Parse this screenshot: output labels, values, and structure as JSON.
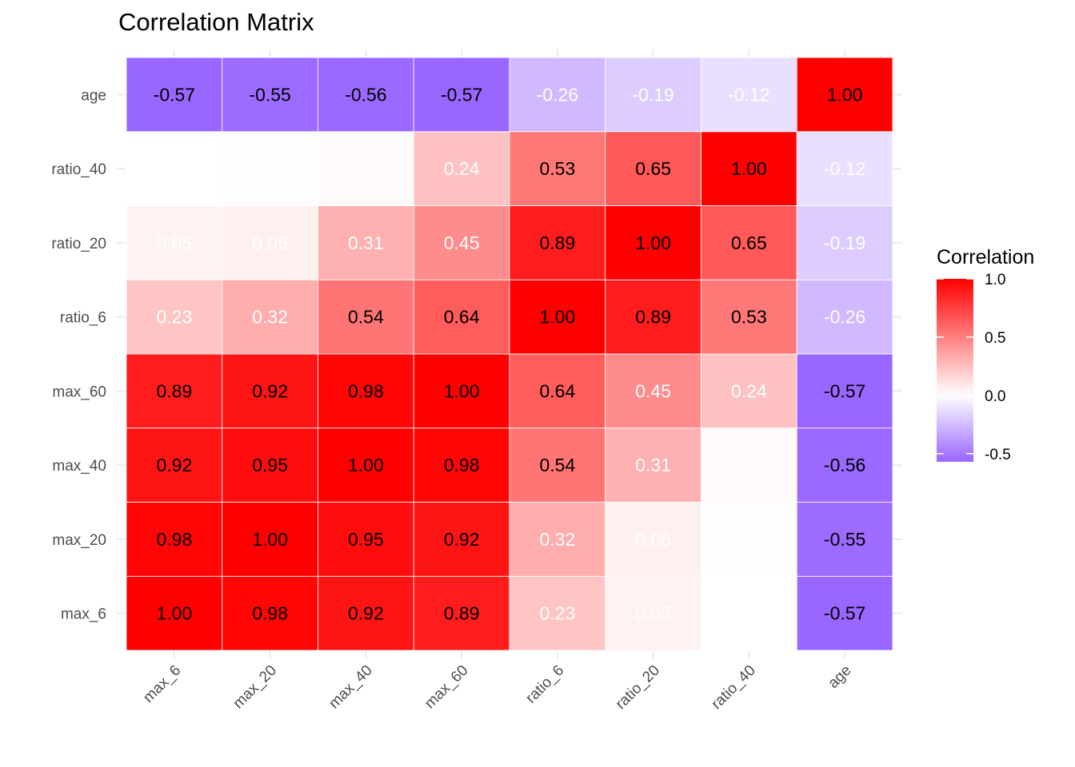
{
  "chart_data": {
    "type": "heatmap",
    "title": "Correlation Matrix",
    "xlabel": "",
    "ylabel": "",
    "x_categories": [
      "max_6",
      "max_20",
      "max_40",
      "max_60",
      "ratio_6",
      "ratio_20",
      "ratio_40",
      "age"
    ],
    "y_categories": [
      "max_6",
      "max_20",
      "max_40",
      "max_60",
      "ratio_6",
      "ratio_20",
      "ratio_40",
      "age"
    ],
    "values": [
      [
        1.0,
        0.98,
        0.92,
        0.89,
        0.23,
        0.05,
        0.0,
        -0.57
      ],
      [
        0.98,
        1.0,
        0.95,
        0.92,
        0.32,
        0.06,
        -0.01,
        -0.55
      ],
      [
        0.92,
        0.95,
        1.0,
        0.98,
        0.54,
        0.31,
        0.02,
        -0.56
      ],
      [
        0.89,
        0.92,
        0.98,
        1.0,
        0.64,
        0.45,
        0.24,
        -0.57
      ],
      [
        0.23,
        0.32,
        0.54,
        0.64,
        1.0,
        0.89,
        0.53,
        -0.26
      ],
      [
        0.05,
        0.06,
        0.31,
        0.45,
        0.89,
        1.0,
        0.65,
        -0.19
      ],
      [
        0.0,
        -0.01,
        0.02,
        0.24,
        0.53,
        0.65,
        1.0,
        -0.12
      ],
      [
        -0.57,
        -0.55,
        -0.56,
        -0.57,
        -0.26,
        -0.19,
        -0.12,
        1.0
      ]
    ],
    "labels": [
      [
        "1.00",
        "0.98",
        "0.92",
        "0.89",
        "0.23",
        "0.05",
        "",
        "-0.57"
      ],
      [
        "0.98",
        "1.00",
        "0.95",
        "0.92",
        "0.32",
        "0.06",
        "-0.01",
        "-0.55"
      ],
      [
        "0.92",
        "0.95",
        "1.00",
        "0.98",
        "0.54",
        "0.31",
        "0.02",
        "-0.56"
      ],
      [
        "0.89",
        "0.92",
        "0.98",
        "1.00",
        "0.64",
        "0.45",
        "0.24",
        "-0.57"
      ],
      [
        "0.23",
        "0.32",
        "0.54",
        "0.64",
        "1.00",
        "0.89",
        "0.53",
        "-0.26"
      ],
      [
        "0.05",
        "0.06",
        "0.31",
        "0.45",
        "0.89",
        "1.00",
        "0.65",
        "-0.19"
      ],
      [
        "",
        "-0.01",
        "0.02",
        "0.24",
        "0.53",
        "0.65",
        "1.00",
        "-0.12"
      ],
      [
        "-0.57",
        "-0.55",
        "-0.56",
        "-0.57",
        "-0.26",
        "-0.19",
        "-0.12",
        "1.00"
      ]
    ],
    "color_scale": {
      "low": "#9966ff",
      "mid": "#ffffff",
      "high": "#ff0000",
      "range": [
        -0.57,
        1.0
      ]
    },
    "legend": {
      "title": "Correlation",
      "placement": "right",
      "ticks": [
        1.0,
        0.5,
        0.0,
        -0.5
      ],
      "tick_labels": [
        "1.0",
        "0.5",
        "0.0",
        "-0.5"
      ]
    },
    "grid": true
  }
}
